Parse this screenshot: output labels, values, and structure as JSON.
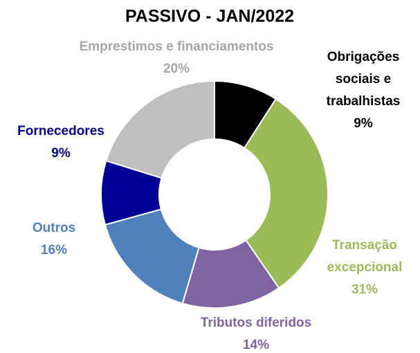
{
  "chart_data": {
    "type": "donut",
    "title": "PASSIVO - JAN/2022",
    "categories": [
      "Obrigações sociais e trabalhistas",
      "Transação excepcional",
      "Tributos diferidos",
      "Outros",
      "Fornecedores",
      "Emprestimos e financiamentos"
    ],
    "values": [
      9,
      31,
      14,
      16,
      9,
      20
    ],
    "value_labels": [
      "9%",
      "31%",
      "14%",
      "16%",
      "9%",
      "20%"
    ],
    "colors": [
      "#000000",
      "#9bbb59",
      "#8064a2",
      "#4f81bd",
      "#000099",
      "#bfbfbf"
    ]
  }
}
